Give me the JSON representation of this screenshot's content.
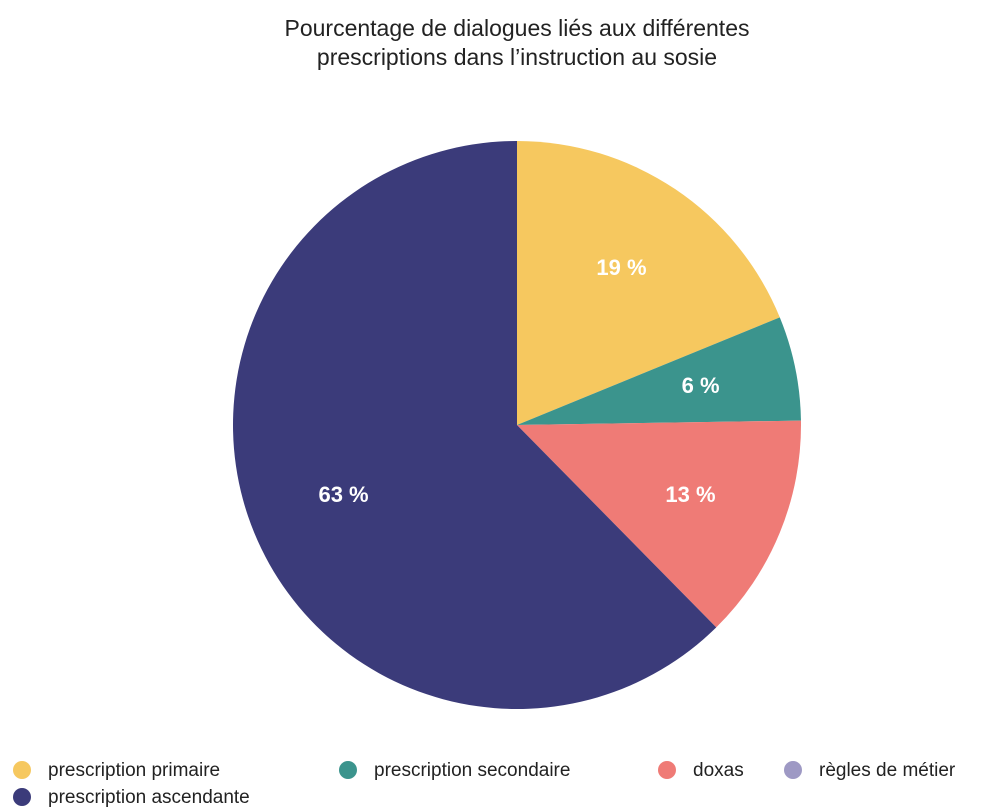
{
  "chart_data": {
    "type": "pie",
    "title": "Pourcentage de dialogues liés aux différentes prescriptions dans l’instruction au sosie",
    "categories": [
      "prescription primaire",
      "prescription secondaire",
      "doxas",
      "règles de métier",
      "prescription ascendante"
    ],
    "values": [
      19,
      6,
      13,
      0,
      63
    ],
    "value_labels": [
      "19 %",
      "6 %",
      "13 %",
      null,
      "63 %"
    ],
    "colors": [
      "#f6c85f",
      "#3b948d",
      "#ef7b76",
      "#9e99c4",
      "#3b3b7a"
    ],
    "legend": "bottom"
  }
}
